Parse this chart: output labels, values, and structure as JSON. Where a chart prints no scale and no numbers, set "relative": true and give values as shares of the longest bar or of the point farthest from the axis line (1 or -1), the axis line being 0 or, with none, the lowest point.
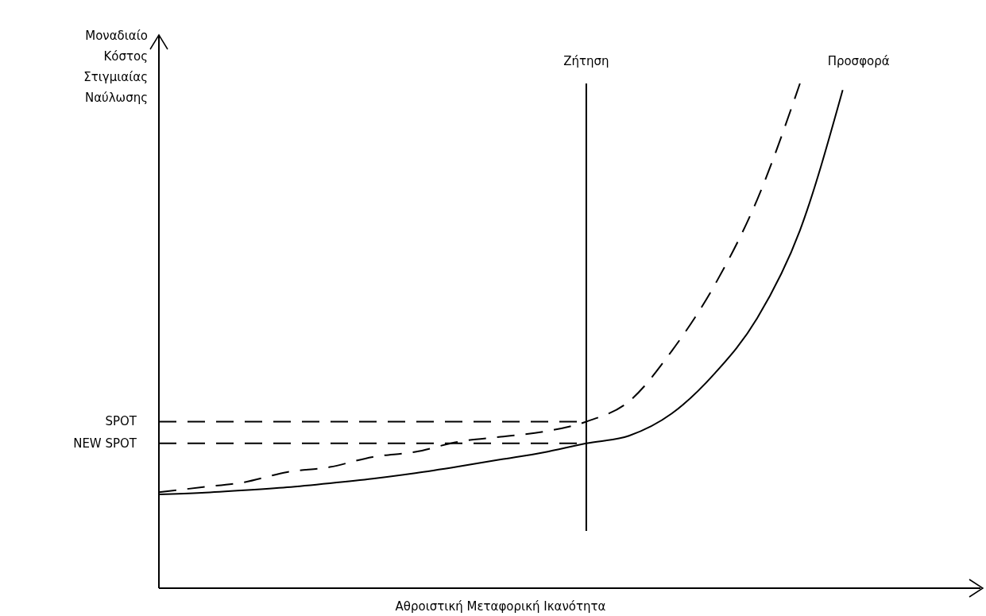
{
  "chart_data": {
    "type": "line",
    "relative": true,
    "xlabel": "Αθροιστική Μεταφορική Ικανότητα",
    "ylabel": "Μοναδιαίο Κόστος Στιγμιαίας Ναύλωσης",
    "categories": [
      null,
      null,
      null,
      null,
      null,
      null,
      null,
      null,
      null,
      null,
      null,
      null,
      null,
      null,
      null,
      null,
      null,
      null,
      null,
      null
    ],
    "series": [
      {
        "name": "Προσφορά",
        "color": "#000000",
        "line_style": "solid",
        "values": [
          0.186,
          0.189,
          0.194,
          0.2,
          0.208,
          0.217,
          0.228,
          0.241,
          0.255,
          0.269,
          0.287,
          0.302,
          0.346,
          0.425,
          0.535,
          0.709,
          0.987,
          null,
          null,
          null
        ]
      },
      {
        "color": "#000000",
        "line_style": "dashed",
        "values": [
          0.19,
          0.2,
          0.21,
          0.23,
          0.24,
          0.26,
          0.27,
          0.29,
          0.3,
          0.31,
          0.33,
          0.37,
          0.47,
          0.6,
          0.77,
          1,
          null,
          null,
          null,
          null
        ]
      }
    ],
    "ref_lines": [
      {
        "axis": "y",
        "value": 0.33,
        "label": "SPOT",
        "line_style": "dashed"
      },
      {
        "axis": "y",
        "value": 0.287,
        "label": "NEW SPOT",
        "line_style": "dashed"
      }
    ],
    "annotations": [
      "Ζήτηση"
    ],
    "legend": false,
    "marker": "none"
  }
}
